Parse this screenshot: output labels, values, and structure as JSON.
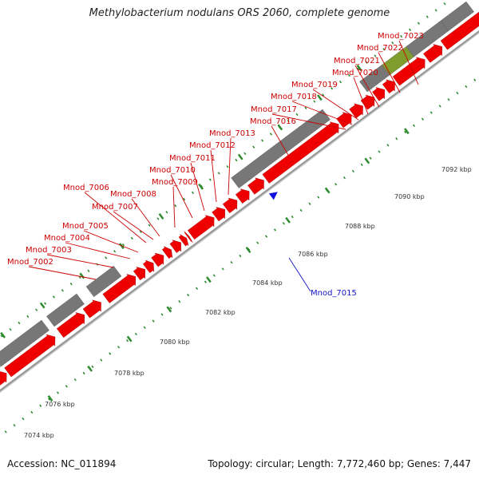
{
  "header": {
    "title": "Methylobacterium nodulans ORS 2060, complete genome"
  },
  "footer": {
    "accession": "Accession: NC_011894",
    "summary": "Topology: circular; Length: 7,772,460 bp; Genes: 7,447"
  },
  "colors": {
    "gene_plus": "#ee0000",
    "gene_minus": "#1010dd",
    "cds_block": "#777777",
    "cds_block_light": "#c4c4c4",
    "cds_block_highlight": "#7f9d2c",
    "backbone": "#9a9a9a",
    "ticks": "#2e8b2e",
    "label_plus": "#cc0000",
    "label_minus": "#1414c8"
  },
  "scale_labels": [
    {
      "kbp": 7074,
      "text": "7074 kbp"
    },
    {
      "kbp": 7076,
      "text": "7076 kbp"
    },
    {
      "kbp": 7078,
      "text": "7078 kbp"
    },
    {
      "kbp": 7080,
      "text": "7080 kbp"
    },
    {
      "kbp": 7082,
      "text": "7082 kbp"
    },
    {
      "kbp": 7084,
      "text": "7084 kbp"
    },
    {
      "kbp": 7086,
      "text": "7086 kbp"
    },
    {
      "kbp": 7088,
      "text": "7088 kbp"
    },
    {
      "kbp": 7090,
      "text": "7090 kbp"
    },
    {
      "kbp": 7092,
      "text": "7092 kbp"
    }
  ],
  "genes": [
    {
      "name": "Mnod_7002",
      "strand": "+"
    },
    {
      "name": "Mnod_7003",
      "strand": "+"
    },
    {
      "name": "Mnod_7004",
      "strand": "+"
    },
    {
      "name": "Mnod_7005",
      "strand": "+"
    },
    {
      "name": "Mnod_7006",
      "strand": "+"
    },
    {
      "name": "Mnod_7007",
      "strand": "+"
    },
    {
      "name": "Mnod_7008",
      "strand": "+"
    },
    {
      "name": "Mnod_7009",
      "strand": "+"
    },
    {
      "name": "Mnod_7010",
      "strand": "+"
    },
    {
      "name": "Mnod_7011",
      "strand": "+"
    },
    {
      "name": "Mnod_7012",
      "strand": "+"
    },
    {
      "name": "Mnod_7013",
      "strand": "+"
    },
    {
      "name": "Mnod_7015",
      "strand": "-"
    },
    {
      "name": "Mnod_7016",
      "strand": "+"
    },
    {
      "name": "Mnod_7017",
      "strand": "+"
    },
    {
      "name": "Mnod_7018",
      "strand": "+"
    },
    {
      "name": "Mnod_7019",
      "strand": "+"
    },
    {
      "name": "Mnod_7020",
      "strand": "+"
    },
    {
      "name": "Mnod_7021",
      "strand": "+"
    },
    {
      "name": "Mnod_7022",
      "strand": "+"
    },
    {
      "name": "Mnod_7023",
      "strand": "+"
    }
  ]
}
